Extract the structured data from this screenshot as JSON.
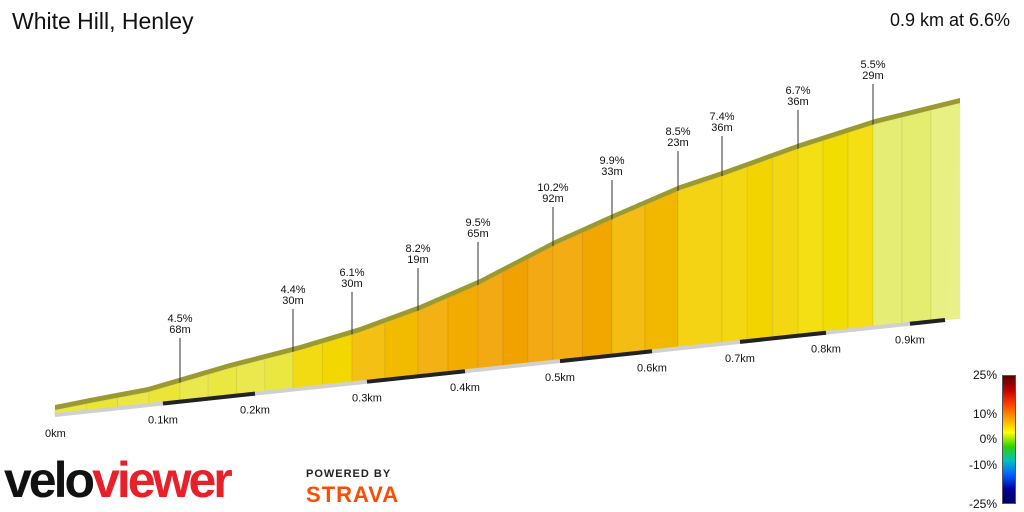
{
  "header": {
    "title": "White Hill, Henley",
    "summary": "0.9 km at 6.6%"
  },
  "branding": {
    "logo_part1": "velo",
    "logo_part2": "viewer",
    "powered_by": "POWERED BY",
    "strava": "STRAVA"
  },
  "legend": {
    "labels": [
      "25%",
      "10%",
      "0%",
      "-10%",
      "-25%"
    ],
    "colors": [
      "#5a0000",
      "#c00000",
      "#ff4000",
      "#ffa000",
      "#ffff00",
      "#30d000",
      "#00c0c0",
      "#0060ff",
      "#0000a0",
      "#000060"
    ]
  },
  "chart_data": {
    "type": "area",
    "title": "White Hill, Henley",
    "xlabel": "",
    "ylabel": "",
    "x_unit": "km",
    "distance_ticks": [
      "0km",
      "0.1km",
      "0.2km",
      "0.3km",
      "0.4km",
      "0.5km",
      "0.6km",
      "0.7km",
      "0.8km",
      "0.9km"
    ],
    "segments": [
      {
        "gradient": "4.5%",
        "length": "68m"
      },
      {
        "gradient": "4.4%",
        "length": "30m"
      },
      {
        "gradient": "6.1%",
        "length": "30m"
      },
      {
        "gradient": "8.2%",
        "length": "19m"
      },
      {
        "gradient": "9.5%",
        "length": "65m"
      },
      {
        "gradient": "10.2%",
        "length": "92m"
      },
      {
        "gradient": "9.9%",
        "length": "33m"
      },
      {
        "gradient": "8.5%",
        "length": "23m"
      },
      {
        "gradient": "7.4%",
        "length": "36m"
      },
      {
        "gradient": "6.7%",
        "length": "36m"
      },
      {
        "gradient": "5.5%",
        "length": "29m"
      }
    ],
    "segment_values": [
      4.5,
      4.4,
      6.1,
      8.2,
      9.5,
      10.2,
      9.9,
      8.5,
      7.4,
      6.7,
      5.5
    ],
    "colors": {
      "low": "#e4ec6a",
      "mid": "#f2e000",
      "high": "#f2a200",
      "top": "#9a9a2e",
      "axis": "#222222",
      "axis_light": "#d0d0d0"
    }
  }
}
